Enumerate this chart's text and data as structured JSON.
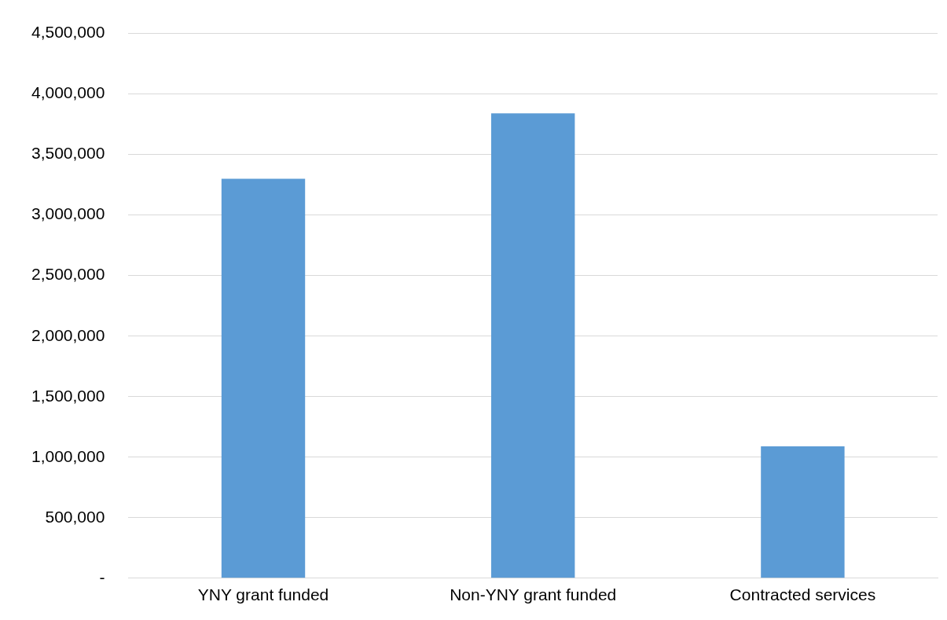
{
  "chart_data": {
    "type": "bar",
    "categories": [
      "YNY grant funded",
      "Non-YNY grant funded",
      "Contracted services"
    ],
    "values": [
      3300000,
      3840000,
      1090000
    ],
    "color": "#5b9bd5",
    "ylim": [
      0,
      4500000
    ],
    "yticks": [
      {
        "value": 0,
        "label": "-"
      },
      {
        "value": 500000,
        "label": "500,000"
      },
      {
        "value": 1000000,
        "label": "1,000,000"
      },
      {
        "value": 1500000,
        "label": "1,500,000"
      },
      {
        "value": 2000000,
        "label": "2,000,000"
      },
      {
        "value": 2500000,
        "label": "2,500,000"
      },
      {
        "value": 3000000,
        "label": "3,000,000"
      },
      {
        "value": 3500000,
        "label": "3,500,000"
      },
      {
        "value": 4000000,
        "label": "4,000,000"
      },
      {
        "value": 4500000,
        "label": "4,500,000"
      }
    ],
    "grid": "y",
    "legend": false
  }
}
